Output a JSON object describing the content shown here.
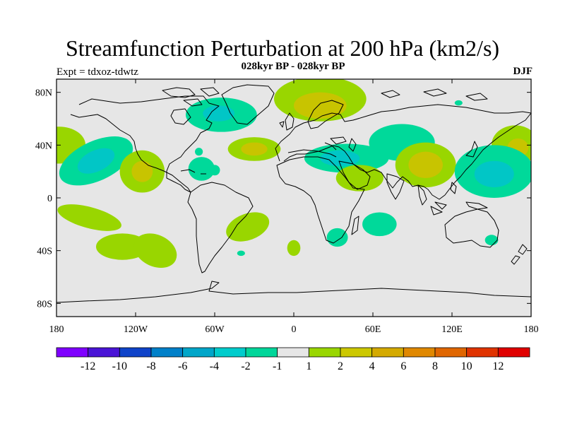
{
  "title": "Streamfunction Perturbation at 200 hPa (km2/s)",
  "subtitle": "028kyr BP - 028kyr BP",
  "left_label": "Expt = tdxoz-tdwtz",
  "right_label": "DJF",
  "map": {
    "projection": "cylindrical equidistant",
    "lon_range": [
      -180,
      180
    ],
    "lat_range": [
      -90,
      90
    ],
    "x_ticks": [
      {
        "lon": -180,
        "label": "180"
      },
      {
        "lon": -120,
        "label": "120W"
      },
      {
        "lon": -60,
        "label": "60W"
      },
      {
        "lon": 0,
        "label": "0"
      },
      {
        "lon": 60,
        "label": "60E"
      },
      {
        "lon": 120,
        "label": "120E"
      },
      {
        "lon": 180,
        "label": "180"
      }
    ],
    "y_ticks": [
      {
        "lat": 80,
        "label": "80N"
      },
      {
        "lat": 40,
        "label": "40N"
      },
      {
        "lat": 0,
        "label": "0"
      },
      {
        "lat": -40,
        "label": "40S"
      },
      {
        "lat": -80,
        "label": "80S"
      }
    ],
    "background_color": "#e6e6e6",
    "anomalies": [
      {
        "lon": -178,
        "lat": 40,
        "rx": 20,
        "ry": 14,
        "level": 1
      },
      {
        "lon": -150,
        "lat": 28,
        "rx": 30,
        "ry": 15,
        "level": -2,
        "rot": -25
      },
      {
        "lon": -150,
        "lat": 28,
        "rx": 15,
        "ry": 8,
        "level": -4,
        "rot": -25
      },
      {
        "lon": -115,
        "lat": 20,
        "rx": 17,
        "ry": 16,
        "level": 1
      },
      {
        "lon": -115,
        "lat": 20,
        "rx": 8,
        "ry": 8,
        "level": 2
      },
      {
        "lon": -55,
        "lat": 63,
        "rx": 27,
        "ry": 13,
        "level": -2
      },
      {
        "lon": -57,
        "lat": 64,
        "rx": 12,
        "ry": 6,
        "level": -4
      },
      {
        "lon": -70,
        "lat": 22,
        "rx": 10,
        "ry": 9,
        "level": -1
      },
      {
        "lon": -60,
        "lat": 21,
        "rx": 4,
        "ry": 4,
        "level": -2
      },
      {
        "lon": -72,
        "lat": 35,
        "rx": 3,
        "ry": 3,
        "level": -2
      },
      {
        "lon": -30,
        "lat": 37,
        "rx": 20,
        "ry": 9,
        "level": 1
      },
      {
        "lon": -30,
        "lat": 37,
        "rx": 10,
        "ry": 5,
        "level": 2
      },
      {
        "lon": 20,
        "lat": 75,
        "rx": 35,
        "ry": 17,
        "level": 1
      },
      {
        "lon": 20,
        "lat": 70,
        "rx": 20,
        "ry": 10,
        "level": 2
      },
      {
        "lon": 40,
        "lat": 30,
        "rx": 32,
        "ry": 11,
        "level": -2
      },
      {
        "lon": 35,
        "lat": 30,
        "rx": 15,
        "ry": 6,
        "level": -4
      },
      {
        "lon": 82,
        "lat": 42,
        "rx": 25,
        "ry": 14,
        "level": -1
      },
      {
        "lon": 50,
        "lat": 15,
        "rx": 18,
        "ry": 10,
        "level": 1
      },
      {
        "lon": 100,
        "lat": 25,
        "rx": 23,
        "ry": 17,
        "level": 1
      },
      {
        "lon": 100,
        "lat": 25,
        "rx": 13,
        "ry": 10,
        "level": 2
      },
      {
        "lon": 125,
        "lat": 72,
        "rx": 3,
        "ry": 2,
        "level": -2
      },
      {
        "lon": 168,
        "lat": 40,
        "rx": 18,
        "ry": 15,
        "level": 1
      },
      {
        "lon": 170,
        "lat": 38,
        "rx": 8,
        "ry": 7,
        "level": 2
      },
      {
        "lon": 152,
        "lat": 20,
        "rx": 30,
        "ry": 20,
        "level": -2
      },
      {
        "lon": 152,
        "lat": 18,
        "rx": 15,
        "ry": 10,
        "level": -4
      },
      {
        "lon": -155,
        "lat": -15,
        "rx": 25,
        "ry": 8,
        "level": 1,
        "rot": 15
      },
      {
        "lon": -130,
        "lat": -37,
        "rx": 20,
        "ry": 10,
        "level": 1
      },
      {
        "lon": -105,
        "lat": -40,
        "rx": 17,
        "ry": 12,
        "level": 1,
        "rot": 25
      },
      {
        "lon": -35,
        "lat": -22,
        "rx": 17,
        "ry": 10,
        "level": 1,
        "rot": -20
      },
      {
        "lon": -40,
        "lat": -42,
        "rx": 3,
        "ry": 2,
        "level": -1
      },
      {
        "lon": 0,
        "lat": -38,
        "rx": 5,
        "ry": 6,
        "level": 1
      },
      {
        "lon": 33,
        "lat": -30,
        "rx": 8,
        "ry": 7,
        "level": -2
      },
      {
        "lon": 65,
        "lat": -20,
        "rx": 13,
        "ry": 9,
        "level": -2
      },
      {
        "lon": 150,
        "lat": -32,
        "rx": 5,
        "ry": 4,
        "level": -2
      }
    ]
  },
  "colorbar": {
    "colors": [
      "#7f00ff",
      "#4a14d6",
      "#0f43c9",
      "#0080c9",
      "#01a6c9",
      "#00cccc",
      "#00d69a",
      "#e6e6e6",
      "#99d600",
      "#ccc800",
      "#d4aa00",
      "#e08800",
      "#e06600",
      "#e03300",
      "#e00000"
    ],
    "labels": [
      "-12",
      "-10",
      "-8",
      "-6",
      "-4",
      "-2",
      "-1",
      "1",
      "2",
      "4",
      "6",
      "8",
      "10",
      "12"
    ]
  },
  "level_colors": {
    "-4": "#01c6c6",
    "-2": "#00d99a",
    "-1": "#00d99a",
    "1": "#99d600",
    "2": "#c8c400"
  }
}
